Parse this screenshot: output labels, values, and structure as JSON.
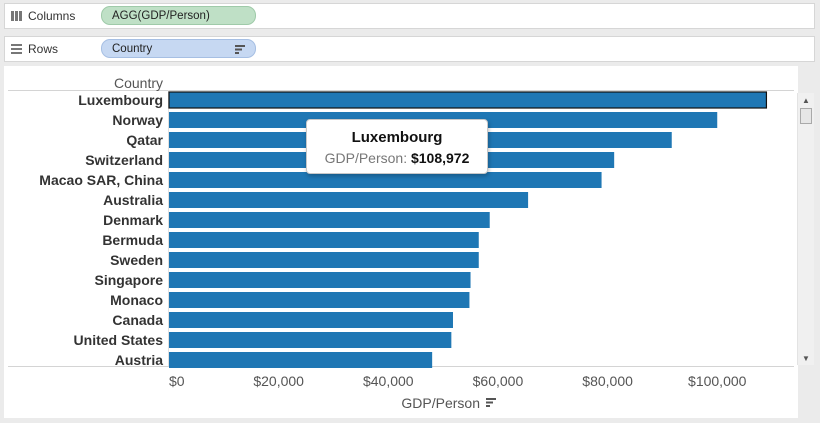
{
  "shelves": {
    "columns": {
      "label": "Columns",
      "pill": "AGG(GDP/Person)",
      "pill_color": "#bfe0c6"
    },
    "rows": {
      "label": "Rows",
      "pill": "Country",
      "pill_color": "#c6d8f2"
    }
  },
  "chart_data": {
    "type": "bar",
    "orientation": "horizontal",
    "row_header": "Country",
    "xlabel": "GDP/Person",
    "xlim": [
      0,
      114000
    ],
    "x_ticks": [
      0,
      20000,
      40000,
      60000,
      80000,
      100000
    ],
    "x_tick_labels": [
      "$0",
      "$20,000",
      "$40,000",
      "$60,000",
      "$80,000",
      "$100,000"
    ],
    "bar_color": "#1f77b4",
    "categories": [
      "Luxembourg",
      "Norway",
      "Qatar",
      "Switzerland",
      "Macao SAR, China",
      "Australia",
      "Denmark",
      "Bermuda",
      "Sweden",
      "Singapore",
      "Monaco",
      "Canada",
      "United States",
      "Austria"
    ],
    "values": [
      108972,
      100000,
      91700,
      81200,
      78900,
      65500,
      58500,
      56500,
      56500,
      55000,
      54800,
      51800,
      51500,
      48000
    ],
    "highlighted": "Luxembourg",
    "grid": false
  },
  "tooltip": {
    "title": "Luxembourg",
    "key": "GDP/Person:",
    "value": "$108,972"
  },
  "scrollbar": {
    "up": "▲",
    "down": "▼"
  }
}
